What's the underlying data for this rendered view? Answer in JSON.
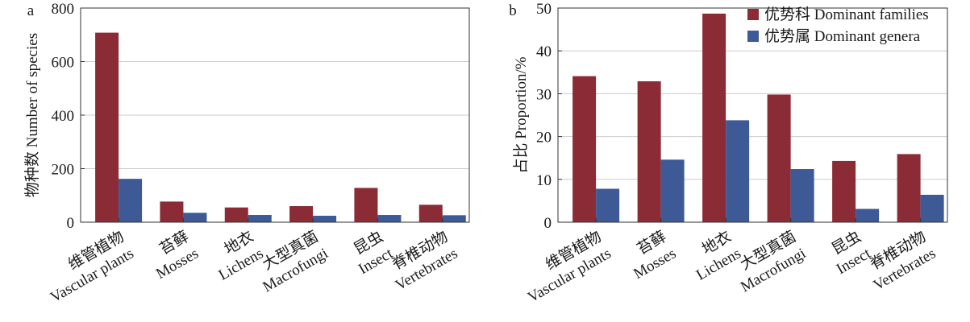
{
  "chart_data": [
    {
      "type": "bar",
      "panel_label": "a",
      "categories": [
        [
          "维管植物",
          "Vascular plants"
        ],
        [
          "苔藓",
          "Mosses"
        ],
        [
          "地衣",
          "Lichens"
        ],
        [
          "大型真菌",
          "Macrofungi"
        ],
        [
          "昆虫",
          "Insect"
        ],
        [
          "脊椎动物",
          "Vertebrates"
        ]
      ],
      "series": [
        {
          "values": [
            708,
            77,
            55,
            60,
            128,
            65
          ],
          "color": "#8b2b36"
        },
        {
          "values": [
            162,
            35,
            27,
            24,
            27,
            26
          ],
          "color": "#3d5a96"
        }
      ],
      "ylabel": "物种数 Number of species",
      "ylim": [
        0,
        800
      ],
      "yticks": [
        0,
        200,
        400,
        600,
        800
      ],
      "grid": "horizontal"
    },
    {
      "type": "bar",
      "panel_label": "b",
      "categories": [
        [
          "维管植物",
          "Vascular plants"
        ],
        [
          "苔藓",
          "Mosses"
        ],
        [
          "地衣",
          "Lichens"
        ],
        [
          "大型真菌",
          "Macrofungi"
        ],
        [
          "昆虫",
          "Insect"
        ],
        [
          "脊椎动物",
          "Vertebrates"
        ]
      ],
      "series": [
        {
          "name": "优势科 Dominant families",
          "values": [
            34.1,
            32.9,
            48.7,
            29.8,
            14.3,
            15.9
          ],
          "color": "#8b2b36"
        },
        {
          "name": "优势属 Dominant genera",
          "values": [
            7.8,
            14.6,
            23.8,
            12.4,
            3.1,
            6.4
          ],
          "color": "#3d5a96"
        }
      ],
      "ylabel": "占比 Proportion/%",
      "ylim": [
        0,
        50
      ],
      "yticks": [
        0,
        10,
        20,
        30,
        40,
        50
      ],
      "grid": "horizontal",
      "legend_position": "top-right"
    }
  ]
}
